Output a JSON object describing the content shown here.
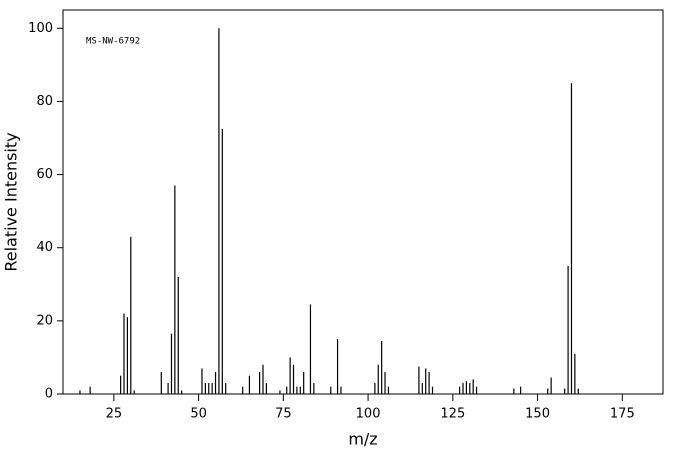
{
  "chart_data": {
    "type": "stem",
    "annotation": "MS-NW-6792",
    "xlabel": "m/z",
    "ylabel": "Relative Intensity",
    "color": "#000000",
    "xlim": [
      10,
      187
    ],
    "ylim": [
      0,
      105
    ],
    "xticks": [
      25,
      50,
      75,
      100,
      125,
      150,
      175
    ],
    "yticks": [
      0,
      20,
      40,
      60,
      80,
      100
    ],
    "x": [
      15,
      18,
      27,
      28,
      29,
      30,
      31,
      39,
      41,
      42,
      43,
      44,
      45,
      51,
      52,
      53,
      54,
      55,
      56,
      57,
      58,
      63,
      65,
      68,
      69,
      70,
      74,
      76,
      77,
      78,
      79,
      80,
      81,
      83,
      84,
      89,
      91,
      92,
      102,
      103,
      104,
      105,
      106,
      115,
      116,
      117,
      118,
      119,
      127,
      128,
      129,
      130,
      131,
      132,
      143,
      145,
      153,
      154,
      158,
      159,
      160,
      161,
      162
    ],
    "values": [
      1,
      2,
      5,
      22,
      21,
      43,
      1,
      6,
      3,
      16.5,
      57,
      32,
      1,
      7,
      3,
      3,
      3,
      6,
      100,
      72.5,
      3,
      2,
      5,
      6,
      8,
      3,
      1,
      2,
      10,
      8,
      2,
      2,
      6,
      24.5,
      3,
      2,
      15,
      2,
      3,
      8,
      14.5,
      6,
      2,
      7.5,
      3,
      7,
      6,
      2,
      2,
      3,
      3.5,
      3,
      4,
      2,
      1.5,
      2,
      1.5,
      4.5,
      1.5,
      35,
      85,
      11,
      1.5
    ]
  }
}
